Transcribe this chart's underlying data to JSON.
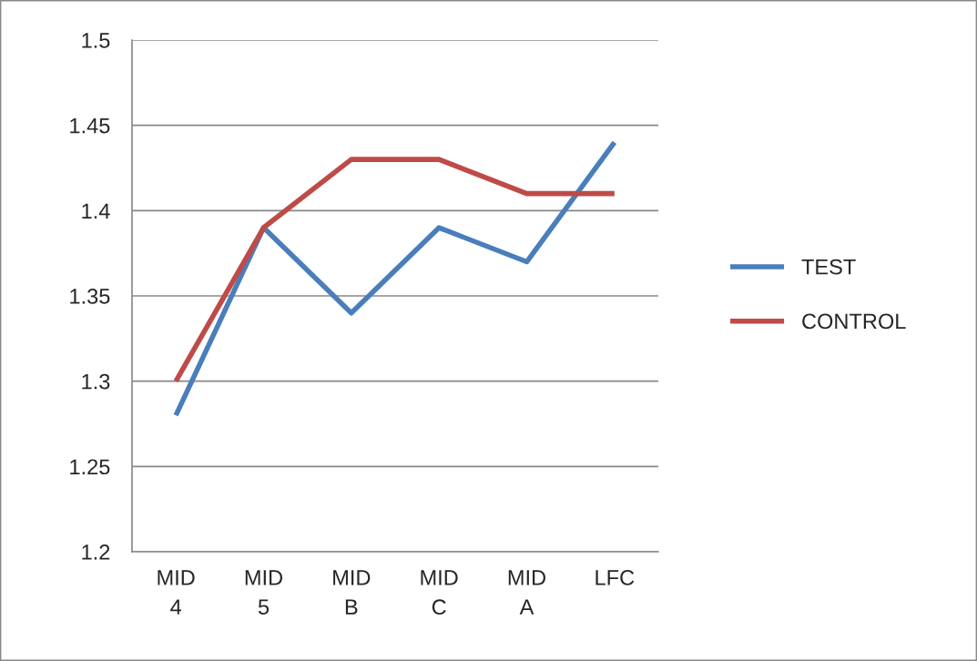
{
  "chart_data": {
    "type": "line",
    "categories": [
      "MID\n4",
      "MID\n5",
      "MID\nB",
      "MID\nC",
      "MID\nA",
      "LFC"
    ],
    "series": [
      {
        "name": "TEST",
        "color": "#4a7ebb",
        "values": [
          1.28,
          1.39,
          1.34,
          1.39,
          1.37,
          1.44
        ]
      },
      {
        "name": "CONTROL",
        "color": "#be4b48",
        "values": [
          1.3,
          1.39,
          1.43,
          1.43,
          1.41,
          1.41
        ]
      }
    ],
    "ylim": [
      1.2,
      1.5
    ],
    "yticks": [
      1.2,
      1.25,
      1.3,
      1.35,
      1.4,
      1.45,
      1.5
    ],
    "grid": "y",
    "legend": "right",
    "marker": "none",
    "line_style": "solid"
  }
}
